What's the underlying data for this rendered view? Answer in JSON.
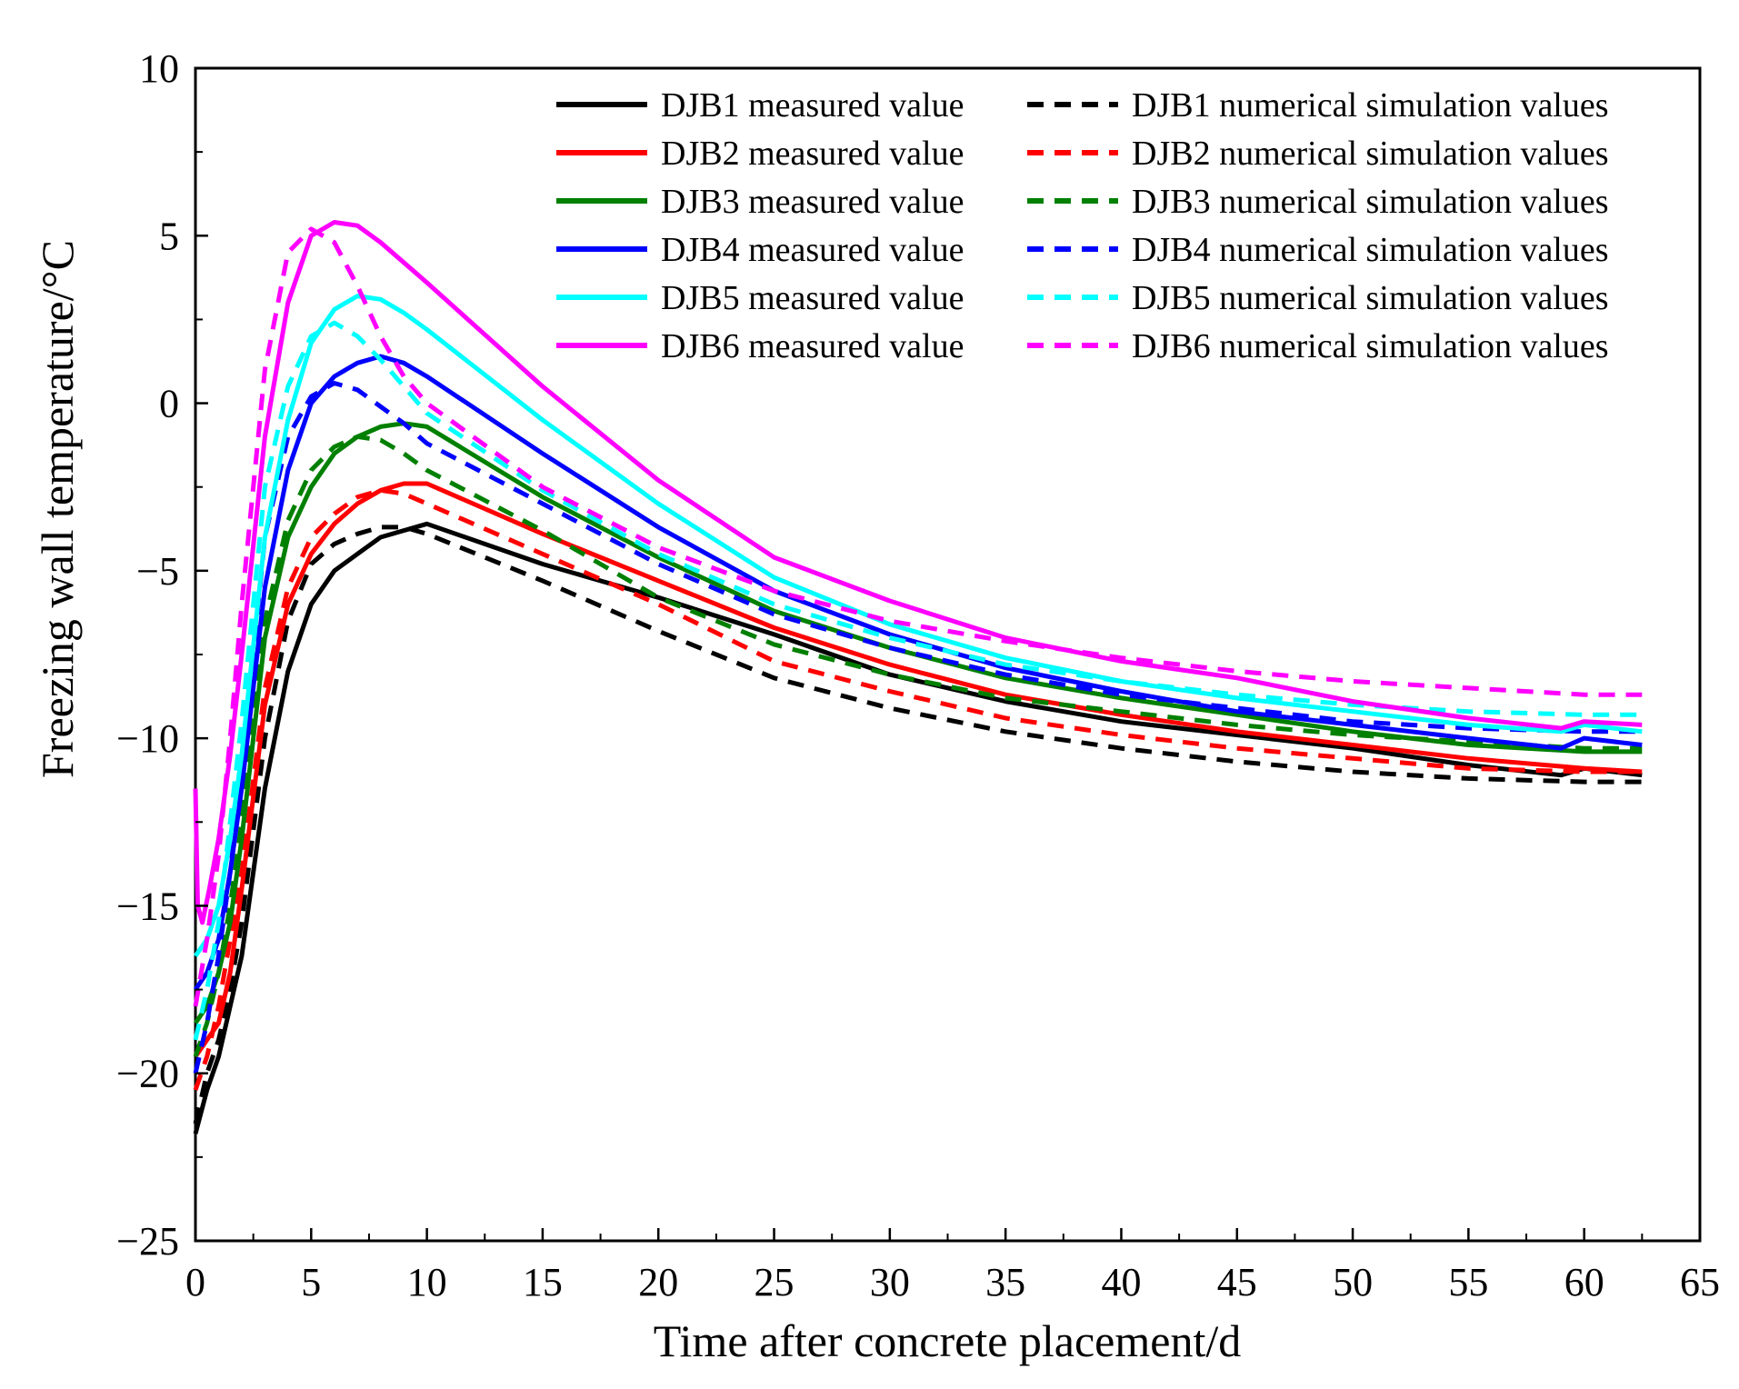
{
  "chart_data": {
    "type": "line",
    "xlabel": "Time after concrete placement/d",
    "ylabel": "Freezing wall temperature/°C",
    "xlim": [
      0,
      65
    ],
    "ylim": [
      -25,
      10
    ],
    "xticks": [
      "0",
      "5",
      "10",
      "15",
      "20",
      "25",
      "30",
      "35",
      "40",
      "45",
      "50",
      "55",
      "60",
      "65"
    ],
    "yticks": [
      "10",
      "5",
      "0",
      "−5",
      "−10",
      "−15",
      "−20",
      "−25"
    ],
    "grid": false,
    "legend_position": "top-right",
    "series": [
      {
        "name": "DJB1 measured value",
        "color": "#000000",
        "dash": false,
        "x": [
          0,
          0.5,
          1,
          1.5,
          2,
          3,
          4,
          5,
          6,
          7,
          8,
          9,
          10,
          15,
          20,
          25,
          30,
          35,
          40,
          45,
          50,
          55,
          59,
          60,
          62.5
        ],
        "y": [
          -21.8,
          -20.5,
          -19.5,
          -18,
          -16.5,
          -11.5,
          -8,
          -6,
          -5,
          -4.5,
          -4,
          -3.8,
          -3.6,
          -4.8,
          -5.8,
          -6.9,
          -8.1,
          -8.9,
          -9.5,
          -9.9,
          -10.3,
          -10.8,
          -11.1,
          -10.9,
          -11.1
        ]
      },
      {
        "name": "DJB1 numerical simulation values",
        "color": "#000000",
        "dash": true,
        "x": [
          0,
          0.5,
          1,
          1.5,
          2,
          3,
          4,
          5,
          6,
          7,
          8,
          9,
          10,
          15,
          20,
          25,
          30,
          35,
          40,
          45,
          50,
          55,
          60,
          62.5
        ],
        "y": [
          -21.5,
          -20,
          -19,
          -17.5,
          -15.5,
          -10,
          -6.5,
          -4.8,
          -4.2,
          -3.9,
          -3.7,
          -3.7,
          -3.9,
          -5.3,
          -6.8,
          -8.2,
          -9.1,
          -9.8,
          -10.3,
          -10.7,
          -11,
          -11.2,
          -11.3,
          -11.3
        ]
      },
      {
        "name": "DJB2 measured value",
        "color": "#ff0000",
        "dash": false,
        "x": [
          0,
          0.5,
          1,
          1.5,
          2,
          3,
          4,
          5,
          6,
          7,
          8,
          9,
          10,
          15,
          20,
          25,
          30,
          35,
          40,
          45,
          50,
          55,
          60,
          62.5
        ],
        "y": [
          -19.5,
          -19,
          -18.5,
          -17,
          -14.5,
          -9,
          -6,
          -4.5,
          -3.6,
          -3,
          -2.6,
          -2.4,
          -2.4,
          -3.9,
          -5.3,
          -6.7,
          -7.8,
          -8.7,
          -9.3,
          -9.8,
          -10.2,
          -10.6,
          -10.9,
          -11
        ]
      },
      {
        "name": "DJB2 numerical simulation values",
        "color": "#ff0000",
        "dash": true,
        "x": [
          0,
          0.5,
          1,
          1.5,
          2,
          3,
          4,
          5,
          6,
          7,
          8,
          9,
          10,
          15,
          20,
          25,
          30,
          35,
          40,
          45,
          50,
          55,
          60,
          62.5
        ],
        "y": [
          -20.5,
          -19.5,
          -18,
          -16,
          -14,
          -8.5,
          -5.5,
          -4,
          -3.3,
          -2.8,
          -2.6,
          -2.7,
          -3,
          -4.5,
          -6,
          -7.7,
          -8.6,
          -9.4,
          -9.9,
          -10.3,
          -10.6,
          -10.9,
          -11,
          -11
        ]
      },
      {
        "name": "DJB3 measured value",
        "color": "#008000",
        "dash": false,
        "x": [
          0,
          0.5,
          1,
          1.5,
          2,
          3,
          4,
          5,
          6,
          7,
          8,
          9,
          10,
          15,
          20,
          25,
          30,
          35,
          40,
          45,
          50,
          55,
          60,
          62.5
        ],
        "y": [
          -18.5,
          -18,
          -17,
          -15.5,
          -13,
          -7,
          -4,
          -2.5,
          -1.5,
          -1,
          -0.7,
          -0.6,
          -0.7,
          -2.8,
          -4.6,
          -6.2,
          -7.3,
          -8.2,
          -8.8,
          -9.3,
          -9.8,
          -10.2,
          -10.4,
          -10.4
        ]
      },
      {
        "name": "DJB3 numerical simulation values",
        "color": "#008000",
        "dash": true,
        "x": [
          0,
          0.5,
          1,
          1.5,
          2,
          3,
          4,
          5,
          6,
          7,
          8,
          9,
          10,
          15,
          20,
          25,
          30,
          35,
          40,
          45,
          50,
          55,
          60,
          62.5
        ],
        "y": [
          -19.5,
          -18.5,
          -17,
          -15,
          -12.5,
          -6.5,
          -3.5,
          -2,
          -1.3,
          -1,
          -1.1,
          -1.5,
          -2,
          -3.8,
          -5.8,
          -7.2,
          -8.1,
          -8.8,
          -9.2,
          -9.6,
          -9.9,
          -10.1,
          -10.3,
          -10.3
        ]
      },
      {
        "name": "DJB4 measured value",
        "color": "#0000ff",
        "dash": false,
        "x": [
          0,
          0.5,
          1,
          1.5,
          2,
          3,
          4,
          5,
          6,
          7,
          8,
          9,
          10,
          15,
          20,
          25,
          30,
          35,
          40,
          45,
          50,
          55,
          59,
          60,
          62.5
        ],
        "y": [
          -17.5,
          -17,
          -16,
          -14,
          -11.5,
          -5.5,
          -2,
          0,
          0.8,
          1.2,
          1.4,
          1.2,
          0.8,
          -1.5,
          -3.7,
          -5.6,
          -6.9,
          -7.9,
          -8.6,
          -9.2,
          -9.6,
          -10,
          -10.3,
          -10,
          -10.2
        ]
      },
      {
        "name": "DJB4 numerical simulation values",
        "color": "#0000ff",
        "dash": true,
        "x": [
          0,
          0.5,
          1,
          1.5,
          2,
          3,
          4,
          5,
          6,
          7,
          8,
          9,
          10,
          15,
          20,
          25,
          30,
          35,
          40,
          45,
          50,
          55,
          60,
          62.5
        ],
        "y": [
          -20,
          -18.5,
          -16.5,
          -14,
          -11,
          -4,
          -1,
          0.2,
          0.6,
          0.4,
          -0.1,
          -0.6,
          -1.2,
          -3,
          -4.8,
          -6.3,
          -7.3,
          -8.1,
          -8.7,
          -9.1,
          -9.5,
          -9.7,
          -9.8,
          -9.8
        ]
      },
      {
        "name": "DJB5 measured value",
        "color": "#00ffff",
        "dash": false,
        "x": [
          0,
          0.5,
          1,
          1.5,
          2,
          3,
          4,
          5,
          6,
          7,
          8,
          9,
          10,
          15,
          20,
          25,
          30,
          35,
          40,
          45,
          50,
          55,
          59,
          60,
          62.5
        ],
        "y": [
          -16.5,
          -16,
          -15,
          -13,
          -10.5,
          -4,
          -0.5,
          1.8,
          2.8,
          3.2,
          3.1,
          2.7,
          2.2,
          -0.5,
          -3,
          -5.2,
          -6.6,
          -7.6,
          -8.3,
          -8.8,
          -9.2,
          -9.6,
          -9.8,
          -9.6,
          -9.8
        ]
      },
      {
        "name": "DJB5 numerical simulation values",
        "color": "#00ffff",
        "dash": true,
        "x": [
          0,
          0.5,
          1,
          1.5,
          2,
          3,
          4,
          5,
          6,
          7,
          8,
          9,
          10,
          15,
          20,
          25,
          30,
          35,
          40,
          45,
          50,
          55,
          60,
          62.5
        ],
        "y": [
          -19,
          -17.5,
          -15.5,
          -12.5,
          -9.5,
          -2.5,
          0.5,
          2,
          2.4,
          2,
          1.3,
          0.5,
          -0.3,
          -2.6,
          -4.5,
          -6,
          -7,
          -7.8,
          -8.3,
          -8.7,
          -9,
          -9.2,
          -9.3,
          -9.3
        ]
      },
      {
        "name": "DJB6 measured value",
        "color": "#ff00ff",
        "dash": false,
        "x": [
          0,
          0.1,
          0.3,
          0.6,
          1,
          1.5,
          2,
          3,
          4,
          5,
          6,
          7,
          8,
          9,
          10,
          15,
          20,
          25,
          30,
          35,
          40,
          45,
          50,
          55,
          59,
          60,
          62.5
        ],
        "y": [
          -11.5,
          -15,
          -15.5,
          -14.5,
          -13,
          -10.5,
          -7.5,
          -1,
          3,
          5,
          5.4,
          5.3,
          4.8,
          4.2,
          3.6,
          0.5,
          -2.3,
          -4.6,
          -5.9,
          -7,
          -7.7,
          -8.2,
          -8.9,
          -9.4,
          -9.7,
          -9.5,
          -9.6
        ]
      },
      {
        "name": "DJB6 numerical simulation values",
        "color": "#ff00ff",
        "dash": true,
        "x": [
          0,
          0.5,
          1,
          1.5,
          2,
          3,
          4,
          5,
          6,
          7,
          8,
          9,
          10,
          15,
          20,
          25,
          30,
          35,
          40,
          45,
          50,
          55,
          60,
          62.5
        ],
        "y": [
          -18,
          -16,
          -13.5,
          -10,
          -6,
          1,
          4.5,
          5.2,
          4.8,
          3.5,
          2,
          0.8,
          0,
          -2.5,
          -4.3,
          -5.6,
          -6.5,
          -7.1,
          -7.6,
          -8,
          -8.3,
          -8.5,
          -8.7,
          -8.7
        ]
      }
    ]
  }
}
